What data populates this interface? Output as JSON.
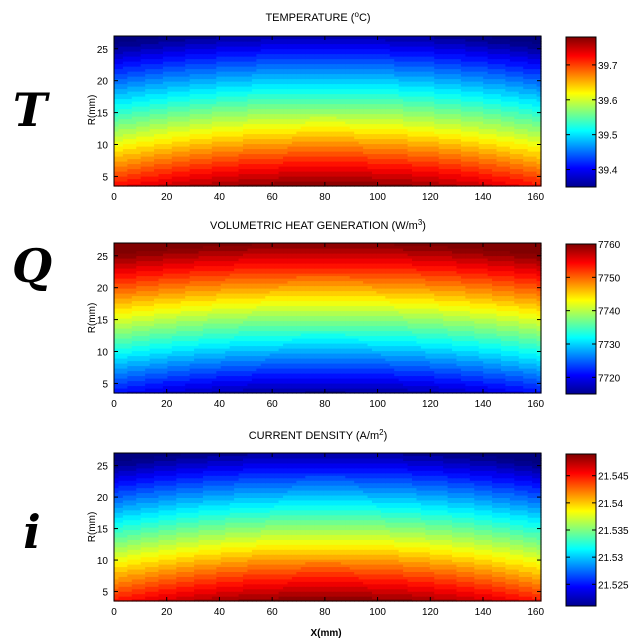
{
  "figure": {
    "xlabel": "X(mm)"
  },
  "chart_data": [
    {
      "type": "heatmap",
      "variable_symbol": "T",
      "title": "TEMPERATURE (°C)",
      "title_main": "TEMPERATURE (",
      "title_sup": "o",
      "title_tail": "C)",
      "ylabel": "R(mm)",
      "xlim": [
        0,
        162
      ],
      "ylim": [
        3.5,
        27
      ],
      "xticks": [
        0,
        20,
        40,
        60,
        80,
        100,
        120,
        140,
        160
      ],
      "yticks": [
        5,
        10,
        15,
        20,
        25
      ],
      "colorbar": {
        "min": 39.35,
        "max": 39.78,
        "ticks": [
          39.4,
          39.5,
          39.6,
          39.7
        ],
        "tick_labels": [
          "39.4",
          "39.5",
          "39.6",
          "39.7"
        ]
      },
      "field": {
        "r_min_value": 39.78,
        "r_max_value": 39.37,
        "x_center": 80,
        "axial_drop": 0.06,
        "gradient": "max at small R near X=80, min at top edge"
      }
    },
    {
      "type": "heatmap",
      "variable_symbol": "Q",
      "title": "VOLUMETRIC HEAT GENERATION (W/m³)",
      "title_main": "VOLUMETRIC HEAT GENERATION (W/m",
      "title_sup": "3",
      "title_tail": ")",
      "ylabel": "R(mm)",
      "xlim": [
        0,
        162
      ],
      "ylim": [
        3.5,
        27
      ],
      "xticks": [
        0,
        20,
        40,
        60,
        80,
        100,
        120,
        140,
        160
      ],
      "yticks": [
        5,
        10,
        15,
        20,
        25
      ],
      "colorbar": {
        "min": 7715,
        "max": 7760,
        "ticks": [
          7720,
          7730,
          7740,
          7750,
          7760
        ],
        "tick_labels": [
          "7720",
          "7730",
          "7740",
          "7750",
          "7760"
        ]
      },
      "field": {
        "r_min_value": 7716,
        "r_max_value": 7760,
        "x_center": 80,
        "axial_drop": 5,
        "gradient": "min at small R near X=80, max at top edge"
      }
    },
    {
      "type": "heatmap",
      "variable_symbol": "i",
      "title": "CURRENT DENSITY (A/m²)",
      "title_main": "CURRENT DENSITY (A/m",
      "title_sup": "2",
      "title_tail": ")",
      "ylabel": "R(mm)",
      "xlim": [
        0,
        162
      ],
      "ylim": [
        3.5,
        27
      ],
      "xticks": [
        0,
        20,
        40,
        60,
        80,
        100,
        120,
        140,
        160
      ],
      "yticks": [
        5,
        10,
        15,
        20,
        25
      ],
      "colorbar": {
        "min": 21.521,
        "max": 21.549,
        "ticks": [
          21.525,
          21.53,
          21.535,
          21.54,
          21.545
        ],
        "tick_labels": [
          "21.525",
          "21.53",
          "21.535",
          "21.54",
          "21.545"
        ]
      },
      "field": {
        "r_min_value": 21.549,
        "r_max_value": 21.522,
        "x_center": 80,
        "axial_drop": 0.004,
        "gradient": "max at small R near X=80, min at top edge"
      }
    }
  ]
}
